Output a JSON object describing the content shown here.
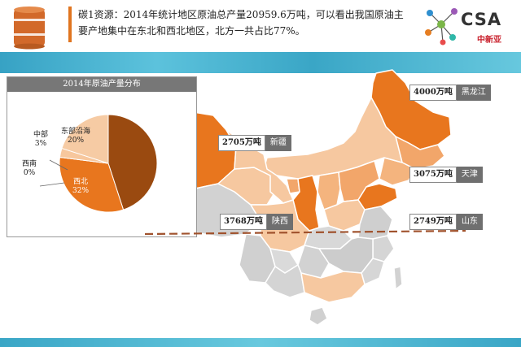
{
  "header": {
    "text": "碳1资源：2014年统计地区原油总产量20959.6万吨，可以看出我国原油主要产地集中在东北和西北地区，北方一共占比77%。",
    "logo_text": "CSA",
    "logo_subtext": "中新亚"
  },
  "pie": {
    "title": "2014年原油产量分布",
    "slices": [
      {
        "name": "华北东北",
        "percent_label": "45%",
        "value": 45,
        "color": "#9a4a10"
      },
      {
        "name": "西北",
        "percent_label": "32%",
        "value": 32,
        "color": "#e8761e"
      },
      {
        "name": "西南",
        "percent_label": "0%",
        "value": 0,
        "color": "#f4b07a"
      },
      {
        "name": "中部",
        "percent_label": "3%",
        "value": 3,
        "color": "#f7c79d"
      },
      {
        "name": "东部沿海",
        "percent_label": "20%",
        "value": 20,
        "color": "#f6cba4"
      }
    ]
  },
  "callouts": {
    "heilongjiang": {
      "value": "4000万吨",
      "name": "黑龙江"
    },
    "xinjiang": {
      "value": "2705万吨",
      "name": "新疆"
    },
    "tianjin": {
      "value": "3075万吨",
      "name": "天津"
    },
    "shaanxi": {
      "value": "3768万吨",
      "name": "陕西"
    },
    "shandong": {
      "value": "2749万吨",
      "name": "山东"
    }
  },
  "colors": {
    "accent": "#e07520",
    "band": "#3aa6c6",
    "dark_orange": "#e8761e",
    "light_orange": "#f6cba4",
    "map_gray": "#cfcfcf"
  }
}
